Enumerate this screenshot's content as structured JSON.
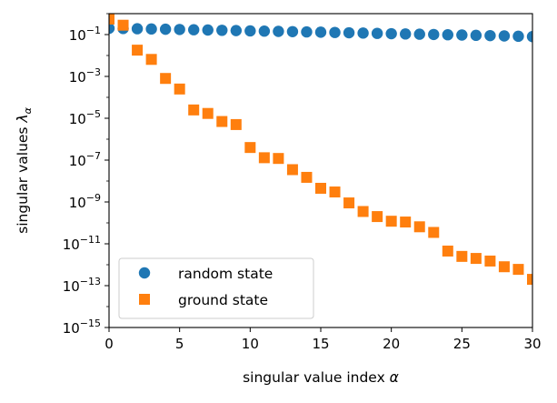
{
  "chart_data": {
    "type": "scatter",
    "xlabel": "singular value index α",
    "ylabel": "singular values λα",
    "xlim": [
      0,
      30
    ],
    "ylim": [
      1e-15,
      1
    ],
    "yscale": "log",
    "grid": false,
    "legend_position": "lower-left",
    "x_ticks": [
      {
        "value": 0,
        "label": "0"
      },
      {
        "value": 5,
        "label": "5"
      },
      {
        "value": 10,
        "label": "10"
      },
      {
        "value": 15,
        "label": "15"
      },
      {
        "value": 20,
        "label": "20"
      },
      {
        "value": 25,
        "label": "25"
      },
      {
        "value": 30,
        "label": "30"
      }
    ],
    "y_ticks": [
      {
        "value": 0.1,
        "base": "10",
        "exp": "−1"
      },
      {
        "value": 0.001,
        "base": "10",
        "exp": "−3"
      },
      {
        "value": 1e-05,
        "base": "10",
        "exp": "−5"
      },
      {
        "value": 1e-07,
        "base": "10",
        "exp": "−7"
      },
      {
        "value": 1e-09,
        "base": "10",
        "exp": "−9"
      },
      {
        "value": 1e-11,
        "base": "10",
        "exp": "−11"
      },
      {
        "value": 1e-13,
        "base": "10",
        "exp": "−13"
      },
      {
        "value": 1e-15,
        "base": "10",
        "exp": "−15"
      }
    ],
    "series": [
      {
        "name": "random state",
        "marker": "circle",
        "color": "#1f77b4",
        "x": [
          0,
          1,
          2,
          3,
          4,
          5,
          6,
          7,
          8,
          9,
          10,
          11,
          12,
          13,
          14,
          15,
          16,
          17,
          18,
          19,
          20,
          21,
          22,
          23,
          24,
          25,
          26,
          27,
          28,
          29,
          30
        ],
        "y": [
          0.2,
          0.195,
          0.19,
          0.185,
          0.18,
          0.175,
          0.17,
          0.165,
          0.16,
          0.155,
          0.15,
          0.146,
          0.142,
          0.138,
          0.134,
          0.13,
          0.126,
          0.122,
          0.118,
          0.114,
          0.11,
          0.107,
          0.104,
          0.101,
          0.098,
          0.095,
          0.092,
          0.089,
          0.086,
          0.083,
          0.08
        ]
      },
      {
        "name": "ground state",
        "marker": "square",
        "color": "#ff7f0e",
        "x": [
          0,
          1,
          2,
          3,
          4,
          5,
          6,
          7,
          8,
          9,
          10,
          11,
          12,
          13,
          14,
          15,
          16,
          17,
          18,
          19,
          20,
          21,
          22,
          23,
          24,
          25,
          26,
          27,
          28,
          29,
          30
        ],
        "y": [
          0.55,
          0.28,
          0.018,
          0.0065,
          0.0008,
          0.00025,
          2.5e-05,
          1.7e-05,
          7e-06,
          5e-06,
          4e-07,
          1.3e-07,
          1.2e-07,
          3.5e-08,
          1.5e-08,
          4.5e-09,
          3e-09,
          9e-10,
          3.5e-10,
          2e-10,
          1.2e-10,
          1.1e-10,
          6.5e-11,
          3.5e-11,
          4.5e-12,
          2.5e-12,
          2e-12,
          1.5e-12,
          8e-13,
          6e-13,
          2e-13
        ]
      }
    ]
  }
}
